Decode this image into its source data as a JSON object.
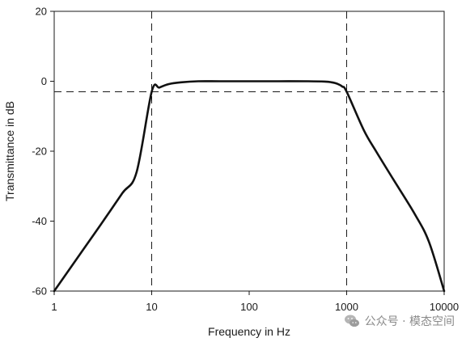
{
  "chart_data": {
    "type": "line",
    "xlabel": "Frequency in Hz",
    "ylabel": "Transmittance in dB",
    "x_scale": "log",
    "xlim": [
      1,
      10000
    ],
    "ylim": [
      -60,
      20
    ],
    "x_ticks": [
      1,
      10,
      100,
      1000,
      10000
    ],
    "y_ticks": [
      -60,
      -40,
      -20,
      0,
      20
    ],
    "x_tick_labels": [
      "1",
      "10",
      "100",
      "1000",
      "10000"
    ],
    "y_tick_labels": [
      "-60",
      "-40",
      "-20",
      "0",
      "20"
    ],
    "grid": false,
    "series": [
      {
        "color": "#111111",
        "x": [
          1,
          2,
          3,
          5,
          7,
          10,
          12,
          15,
          20,
          30,
          50,
          100,
          200,
          400,
          600,
          700,
          800,
          900,
          1000,
          1500,
          2000,
          3000,
          5000,
          7000,
          10000
        ],
        "y": [
          -60,
          -48,
          -41,
          -32,
          -26,
          -3,
          -1.8,
          -0.8,
          -0.3,
          0,
          0,
          0,
          0,
          0,
          -0.1,
          -0.3,
          -0.7,
          -1.5,
          -3,
          -14,
          -20,
          -28,
          -38,
          -46,
          -60
        ]
      }
    ],
    "reference_lines": [
      {
        "axis": "x",
        "value": 10,
        "style": "dashed"
      },
      {
        "axis": "x",
        "value": 1000,
        "style": "dashed"
      },
      {
        "axis": "y",
        "value": -3,
        "style": "dashed"
      }
    ]
  },
  "watermark": {
    "text": "公众号 · 模态空间",
    "icon": "wechat-icon"
  }
}
